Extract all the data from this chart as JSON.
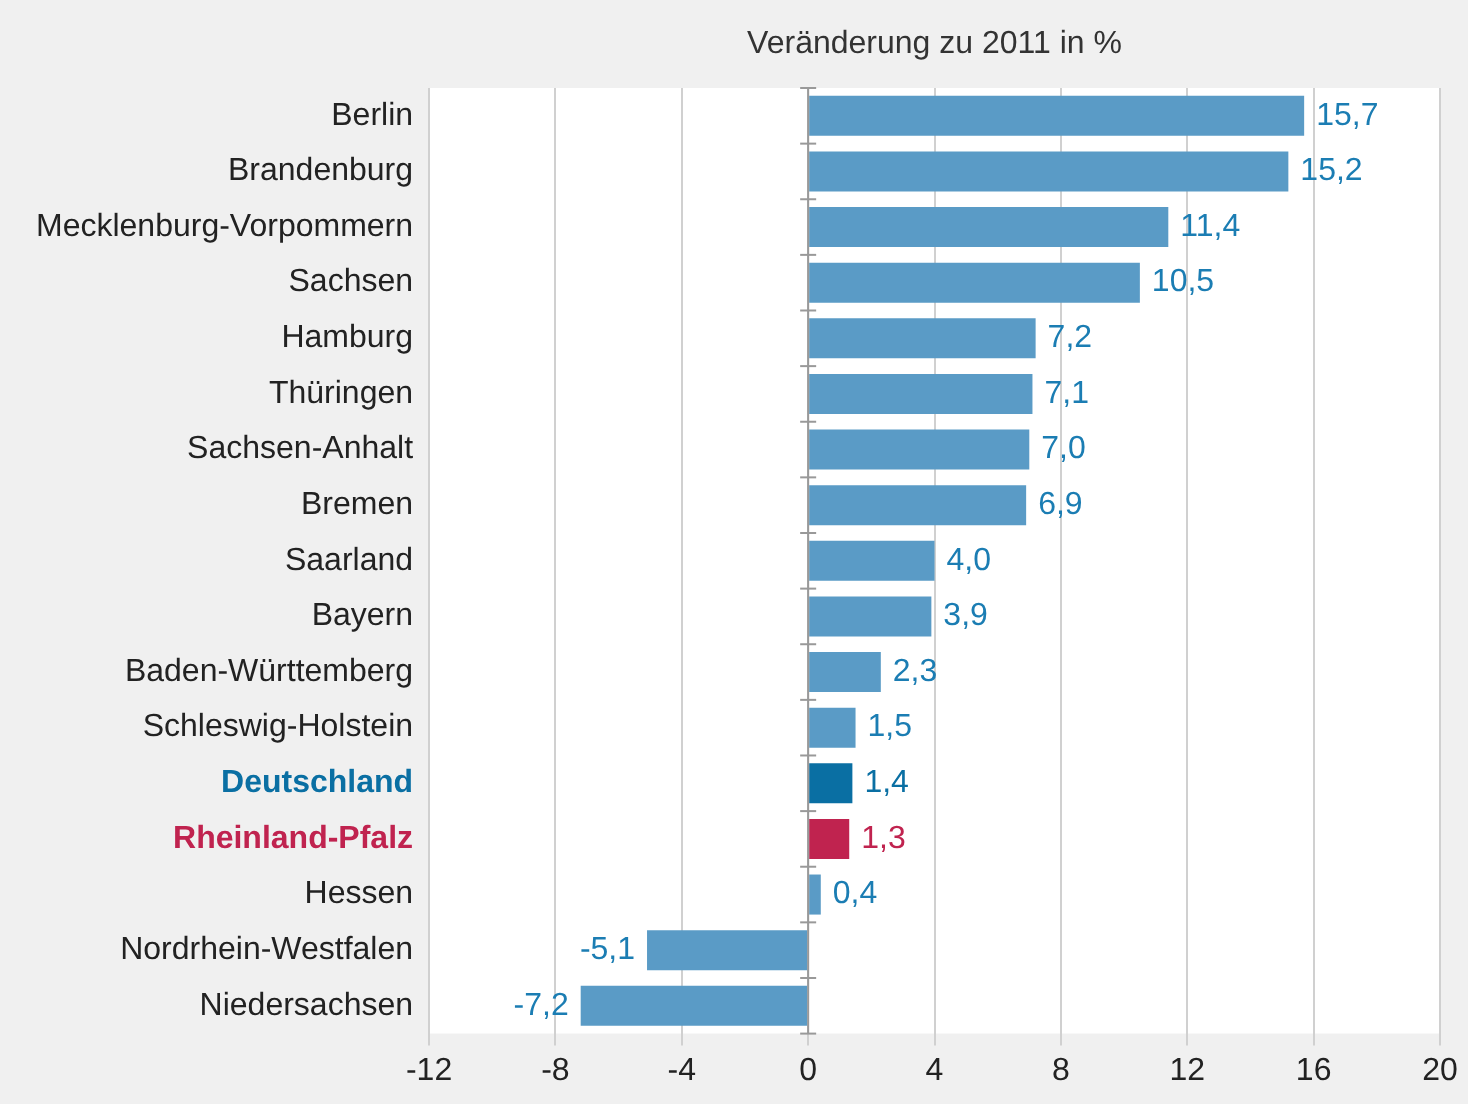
{
  "chart_data": {
    "type": "bar",
    "orientation": "horizontal",
    "title": "Veränderung zu 2011 in %",
    "categories": [
      "Berlin",
      "Brandenburg",
      "Mecklenburg-Vorpommern",
      "Sachsen",
      "Hamburg",
      "Thüringen",
      "Sachsen-Anhalt",
      "Bremen",
      "Saarland",
      "Bayern",
      "Baden-Württemberg",
      "Schleswig-Holstein",
      "Deutschland",
      "Rheinland-Pfalz",
      "Hessen",
      "Nordrhein-Westfalen",
      "Niedersachsen"
    ],
    "values": [
      15.7,
      15.2,
      11.4,
      10.5,
      7.2,
      7.1,
      7.0,
      6.9,
      4.0,
      3.9,
      2.3,
      1.5,
      1.4,
      1.3,
      0.4,
      -5.1,
      -7.2
    ],
    "value_labels": [
      "15,7",
      "15,2",
      "11,4",
      "10,5",
      "7,2",
      "7,1",
      "7,0",
      "6,9",
      "4,0",
      "3,9",
      "2,3",
      "1,5",
      "1,4",
      "1,3",
      "0,4",
      "-5,1",
      "-7,2"
    ],
    "color": "#5a9bc6",
    "colors": [
      "#5a9bc6",
      "#5a9bc6",
      "#5a9bc6",
      "#5a9bc6",
      "#5a9bc6",
      "#5a9bc6",
      "#5a9bc6",
      "#5a9bc6",
      "#5a9bc6",
      "#5a9bc6",
      "#5a9bc6",
      "#5a9bc6",
      "#0a6fa3",
      "#c0234f",
      "#5a9bc6",
      "#5a9bc6",
      "#5a9bc6"
    ],
    "xlim": [
      -12,
      20
    ],
    "xticks": [
      -12,
      -8,
      -4,
      0,
      4,
      8,
      12,
      16,
      20
    ],
    "grid": "x",
    "legend": false
  }
}
